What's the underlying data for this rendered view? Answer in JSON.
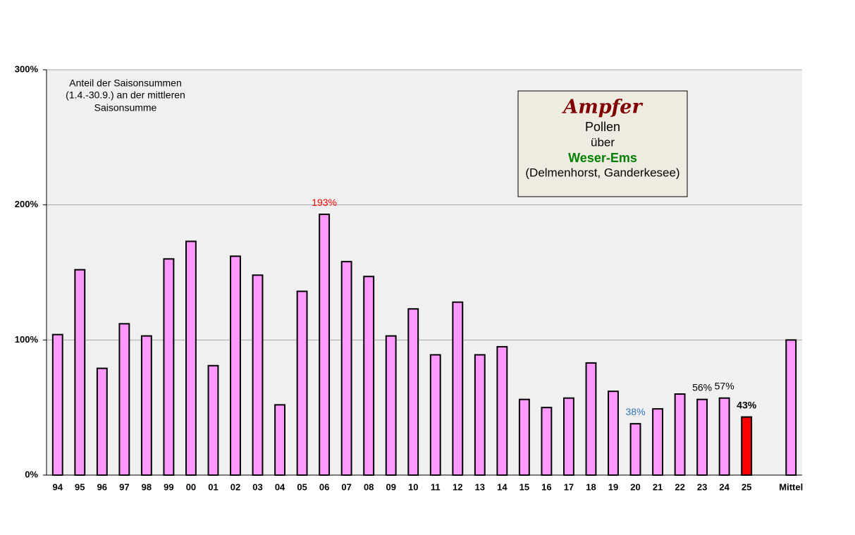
{
  "chart_data": {
    "type": "bar",
    "note": [
      "Anteil  der Saisonsummen",
      "(1.4.-30.9.)  an der mittleren",
      "Saisonsumme"
    ],
    "title_box": [
      "Ampfer",
      "Pollen",
      "über",
      "Weser-Ems",
      "(Delmenhorst, Ganderkesee)"
    ],
    "categories": [
      "94",
      "95",
      "96",
      "97",
      "98",
      "99",
      "00",
      "01",
      "02",
      "03",
      "04",
      "05",
      "06",
      "07",
      "08",
      "09",
      "10",
      "11",
      "12",
      "13",
      "14",
      "15",
      "16",
      "17",
      "18",
      "19",
      "20",
      "21",
      "22",
      "23",
      "24",
      "25",
      null,
      "Mittel"
    ],
    "values": [
      104,
      152,
      79,
      112,
      103,
      160,
      173,
      81,
      162,
      148,
      52,
      136,
      193,
      158,
      147,
      103,
      123,
      89,
      128,
      89,
      95,
      56,
      50,
      57,
      83,
      62,
      38,
      49,
      60,
      56,
      57,
      43,
      null,
      100
    ],
    "value_labels": [
      null,
      null,
      null,
      null,
      null,
      null,
      null,
      null,
      null,
      null,
      null,
      null,
      "193%",
      null,
      null,
      null,
      null,
      null,
      null,
      null,
      null,
      null,
      null,
      null,
      null,
      null,
      "38%",
      null,
      null,
      "56%",
      "57%",
      "43%",
      null,
      null
    ],
    "value_label_colors": [
      null,
      null,
      null,
      null,
      null,
      null,
      null,
      null,
      null,
      null,
      null,
      null,
      "#ff0000",
      null,
      null,
      null,
      null,
      null,
      null,
      null,
      null,
      null,
      null,
      null,
      null,
      null,
      "#2e75b6",
      null,
      null,
      "#000000",
      "#000000",
      "#000000",
      null,
      null
    ],
    "colors": [
      "#ff99ff",
      "#ff99ff",
      "#ff99ff",
      "#ff99ff",
      "#ff99ff",
      "#ff99ff",
      "#ff99ff",
      "#ff99ff",
      "#ff99ff",
      "#ff99ff",
      "#ff99ff",
      "#ff99ff",
      "#ff99ff",
      "#ff99ff",
      "#ff99ff",
      "#ff99ff",
      "#ff99ff",
      "#ff99ff",
      "#ff99ff",
      "#ff99ff",
      "#ff99ff",
      "#ff99ff",
      "#ff99ff",
      "#ff99ff",
      "#ff99ff",
      "#ff99ff",
      "#ff99ff",
      "#ff99ff",
      "#ff99ff",
      "#ff99ff",
      "#ff99ff",
      "#ff0000",
      null,
      "#ff99ff"
    ],
    "ylim": [
      0,
      300
    ],
    "yticks": [
      {
        "value": 0,
        "label": "0%"
      },
      {
        "value": 100,
        "label": "100%"
      },
      {
        "value": 200,
        "label": "200%"
      },
      {
        "value": 300,
        "label": "300%"
      }
    ],
    "grid": true
  }
}
